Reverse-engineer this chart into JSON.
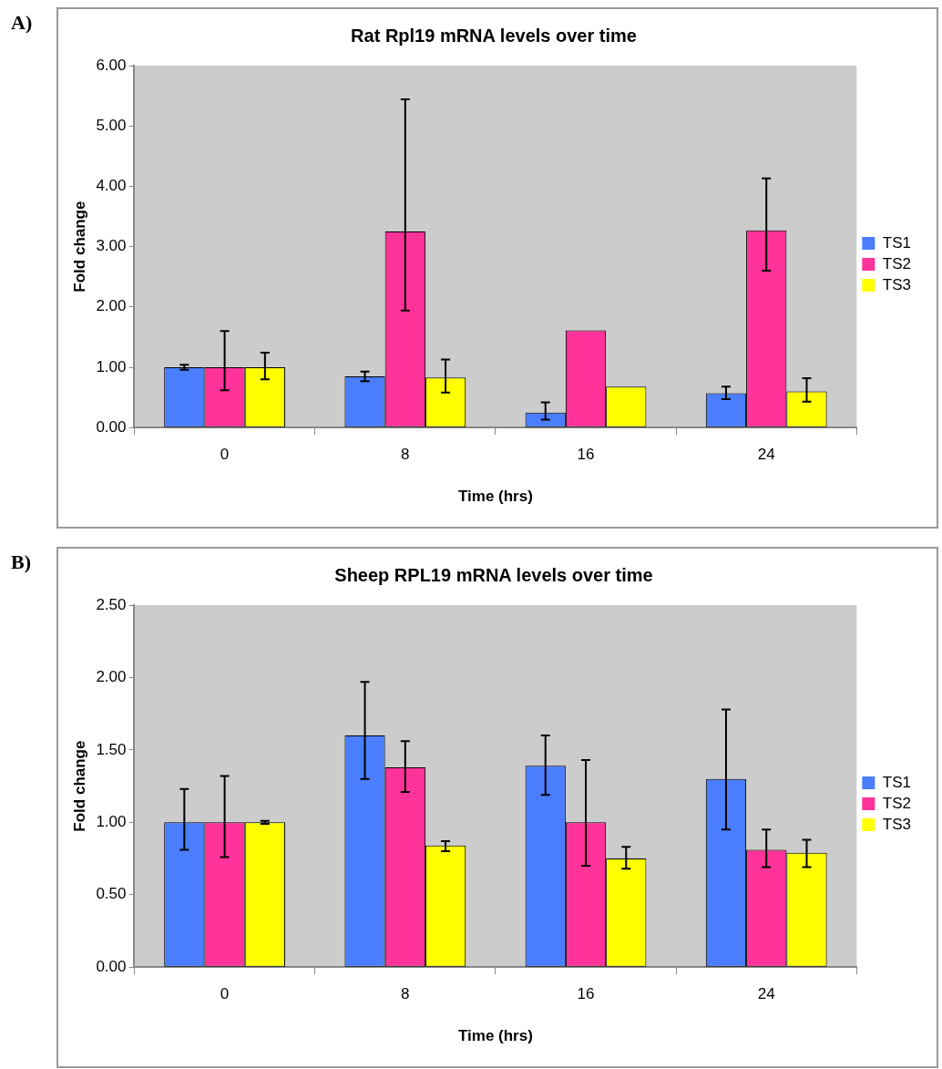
{
  "chart_data": [
    {
      "type": "bar",
      "title": "Rat Rpl19 mRNA levels over time",
      "xlabel": "Time (hrs)",
      "ylabel": "Fold change",
      "annotations": [
        "A)"
      ],
      "categories": [
        "0",
        "8",
        "16",
        "24"
      ],
      "series": [
        {
          "name": "TS1",
          "color": "#4a7eff",
          "values": [
            1.0,
            0.85,
            0.25,
            0.57
          ],
          "errors": [
            [
              0.96,
              1.04
            ],
            [
              0.77,
              0.93
            ],
            [
              0.13,
              0.42
            ],
            [
              0.47,
              0.68
            ]
          ]
        },
        {
          "name": "TS2",
          "color": "#ff3399",
          "values": [
            1.0,
            3.25,
            1.61,
            3.27
          ],
          "errors": [
            [
              0.62,
              1.6
            ],
            [
              1.94,
              5.44
            ],
            null,
            [
              2.6,
              4.13
            ]
          ]
        },
        {
          "name": "TS3",
          "color": "#ffff00",
          "values": [
            1.0,
            0.83,
            0.68,
            0.6
          ],
          "errors": [
            [
              0.8,
              1.24
            ],
            [
              0.58,
              1.13
            ],
            null,
            [
              0.43,
              0.82
            ]
          ]
        }
      ],
      "ylim": [
        0,
        6
      ],
      "yticks": [
        {
          "value": 0,
          "label": "0.00"
        },
        {
          "value": 1,
          "label": "1.00"
        },
        {
          "value": 2,
          "label": "2.00"
        },
        {
          "value": 3,
          "label": "3.00"
        },
        {
          "value": 4,
          "label": "4.00"
        },
        {
          "value": 5,
          "label": "5.00"
        },
        {
          "value": 6,
          "label": "6.00"
        }
      ],
      "grid": false,
      "legend": "right"
    },
    {
      "type": "bar",
      "title": "Sheep RPL19 mRNA levels over time",
      "xlabel": "Time (hrs)",
      "ylabel": "Fold change",
      "annotations": [
        "B)"
      ],
      "categories": [
        "0",
        "8",
        "16",
        "24"
      ],
      "series": [
        {
          "name": "TS1",
          "color": "#4a7eff",
          "values": [
            1.0,
            1.6,
            1.39,
            1.3
          ],
          "errors": [
            [
              0.81,
              1.23
            ],
            [
              1.3,
              1.97
            ],
            [
              1.19,
              1.6
            ],
            [
              0.95,
              1.78
            ]
          ]
        },
        {
          "name": "TS2",
          "color": "#ff3399",
          "values": [
            1.0,
            1.38,
            1.0,
            0.81
          ],
          "errors": [
            [
              0.76,
              1.32
            ],
            [
              1.21,
              1.56
            ],
            [
              0.7,
              1.43
            ],
            [
              0.69,
              0.95
            ]
          ]
        },
        {
          "name": "TS3",
          "color": "#ffff00",
          "values": [
            1.0,
            0.84,
            0.75,
            0.79
          ],
          "errors": [
            [
              0.99,
              1.01
            ],
            [
              0.8,
              0.87
            ],
            [
              0.68,
              0.83
            ],
            [
              0.69,
              0.88
            ]
          ]
        }
      ],
      "ylim": [
        0,
        2.5
      ],
      "yticks": [
        {
          "value": 0,
          "label": "0.00"
        },
        {
          "value": 0.5,
          "label": "0.50"
        },
        {
          "value": 1,
          "label": "1.00"
        },
        {
          "value": 1.5,
          "label": "1.50"
        },
        {
          "value": 2,
          "label": "2.00"
        },
        {
          "value": 2.5,
          "label": "2.50"
        }
      ],
      "grid": false,
      "legend": "right"
    }
  ]
}
